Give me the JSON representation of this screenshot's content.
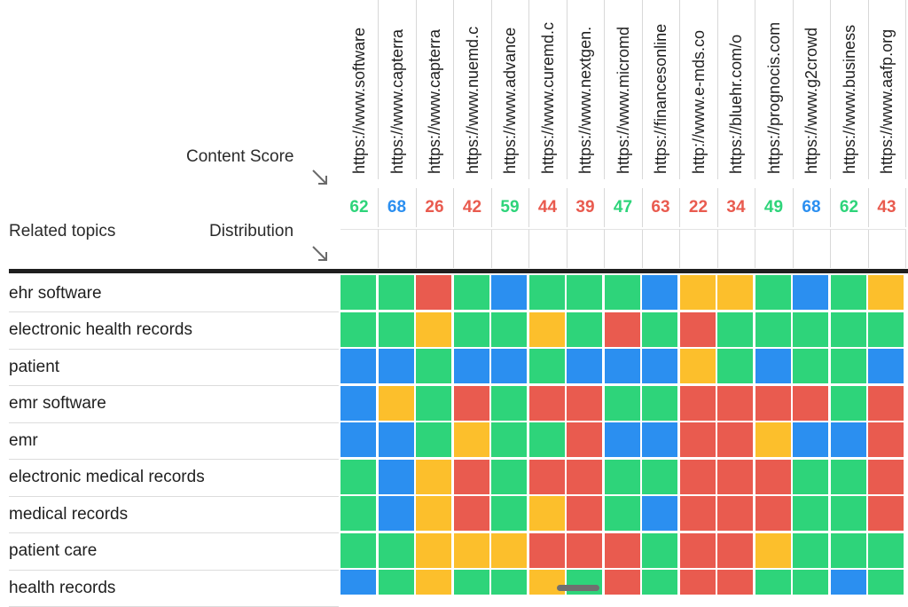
{
  "header": {
    "content_score_label": "Content Score",
    "related_topics_label": "Related topics",
    "distribution_label": "Distribution"
  },
  "icons": {
    "corner_arrow": "arrow-down-right-icon"
  },
  "colors": {
    "green": "#2ed47a",
    "blue": "#2b8ff0",
    "red": "#e95b4f",
    "yellow": "#fcbf2c"
  },
  "columns": [
    {
      "url": "https://www.software",
      "score": "62",
      "score_color": "#2ed47a"
    },
    {
      "url": "https://www.capterra",
      "score": "68",
      "score_color": "#2b8ff0"
    },
    {
      "url": "https://www.capterra",
      "score": "26",
      "score_color": "#e95b4f"
    },
    {
      "url": "https://www.nuemd.c",
      "score": "42",
      "score_color": "#e95b4f"
    },
    {
      "url": "https://www.advance",
      "score": "59",
      "score_color": "#2ed47a"
    },
    {
      "url": "https://www.curemd.c",
      "score": "44",
      "score_color": "#e95b4f"
    },
    {
      "url": "https://www.nextgen.",
      "score": "39",
      "score_color": "#e95b4f"
    },
    {
      "url": "https://www.micromd",
      "score": "47",
      "score_color": "#2ed47a"
    },
    {
      "url": "https://financesonline",
      "score": "63",
      "score_color": "#e95b4f"
    },
    {
      "url": "http://www.e-mds.co",
      "score": "22",
      "score_color": "#e95b4f"
    },
    {
      "url": "https://bluehr.com/o",
      "score": "34",
      "score_color": "#e95b4f"
    },
    {
      "url": "https://prognocis.com",
      "score": "49",
      "score_color": "#2ed47a"
    },
    {
      "url": "https://www.g2crowd",
      "score": "68",
      "score_color": "#2b8ff0"
    },
    {
      "url": "https://www.business",
      "score": "62",
      "score_color": "#2ed47a"
    },
    {
      "url": "https://www.aafp.org",
      "score": "43",
      "score_color": "#e95b4f"
    }
  ],
  "topics": [
    {
      "label": "ehr software",
      "cells": [
        "g",
        "g",
        "r",
        "g",
        "b",
        "g",
        "g",
        "g",
        "b",
        "y",
        "y",
        "g",
        "b",
        "g",
        "y"
      ]
    },
    {
      "label": "electronic health records",
      "cells": [
        "g",
        "g",
        "y",
        "g",
        "g",
        "y",
        "g",
        "r",
        "g",
        "r",
        "g",
        "g",
        "g",
        "g",
        "g"
      ]
    },
    {
      "label": "patient",
      "cells": [
        "b",
        "b",
        "g",
        "b",
        "b",
        "g",
        "b",
        "b",
        "b",
        "y",
        "g",
        "b",
        "g",
        "g",
        "b"
      ]
    },
    {
      "label": "emr software",
      "cells": [
        "b",
        "y",
        "g",
        "r",
        "g",
        "r",
        "r",
        "g",
        "g",
        "r",
        "r",
        "r",
        "r",
        "g",
        "r"
      ]
    },
    {
      "label": "emr",
      "cells": [
        "b",
        "b",
        "g",
        "y",
        "g",
        "g",
        "r",
        "b",
        "b",
        "r",
        "r",
        "y",
        "b",
        "b",
        "r"
      ]
    },
    {
      "label": "electronic medical records",
      "cells": [
        "g",
        "b",
        "y",
        "r",
        "g",
        "r",
        "r",
        "g",
        "g",
        "r",
        "r",
        "r",
        "g",
        "g",
        "r"
      ]
    },
    {
      "label": "medical records",
      "cells": [
        "g",
        "b",
        "y",
        "r",
        "g",
        "y",
        "r",
        "g",
        "b",
        "r",
        "r",
        "r",
        "g",
        "g",
        "r"
      ]
    },
    {
      "label": "patient care",
      "cells": [
        "g",
        "g",
        "y",
        "y",
        "y",
        "r",
        "r",
        "r",
        "g",
        "r",
        "r",
        "y",
        "g",
        "g",
        "g"
      ]
    },
    {
      "label": "health records",
      "cells": [
        "b",
        "g",
        "y",
        "g",
        "g",
        "y",
        "g",
        "r",
        "g",
        "r",
        "r",
        "g",
        "g",
        "b",
        "g"
      ]
    }
  ]
}
